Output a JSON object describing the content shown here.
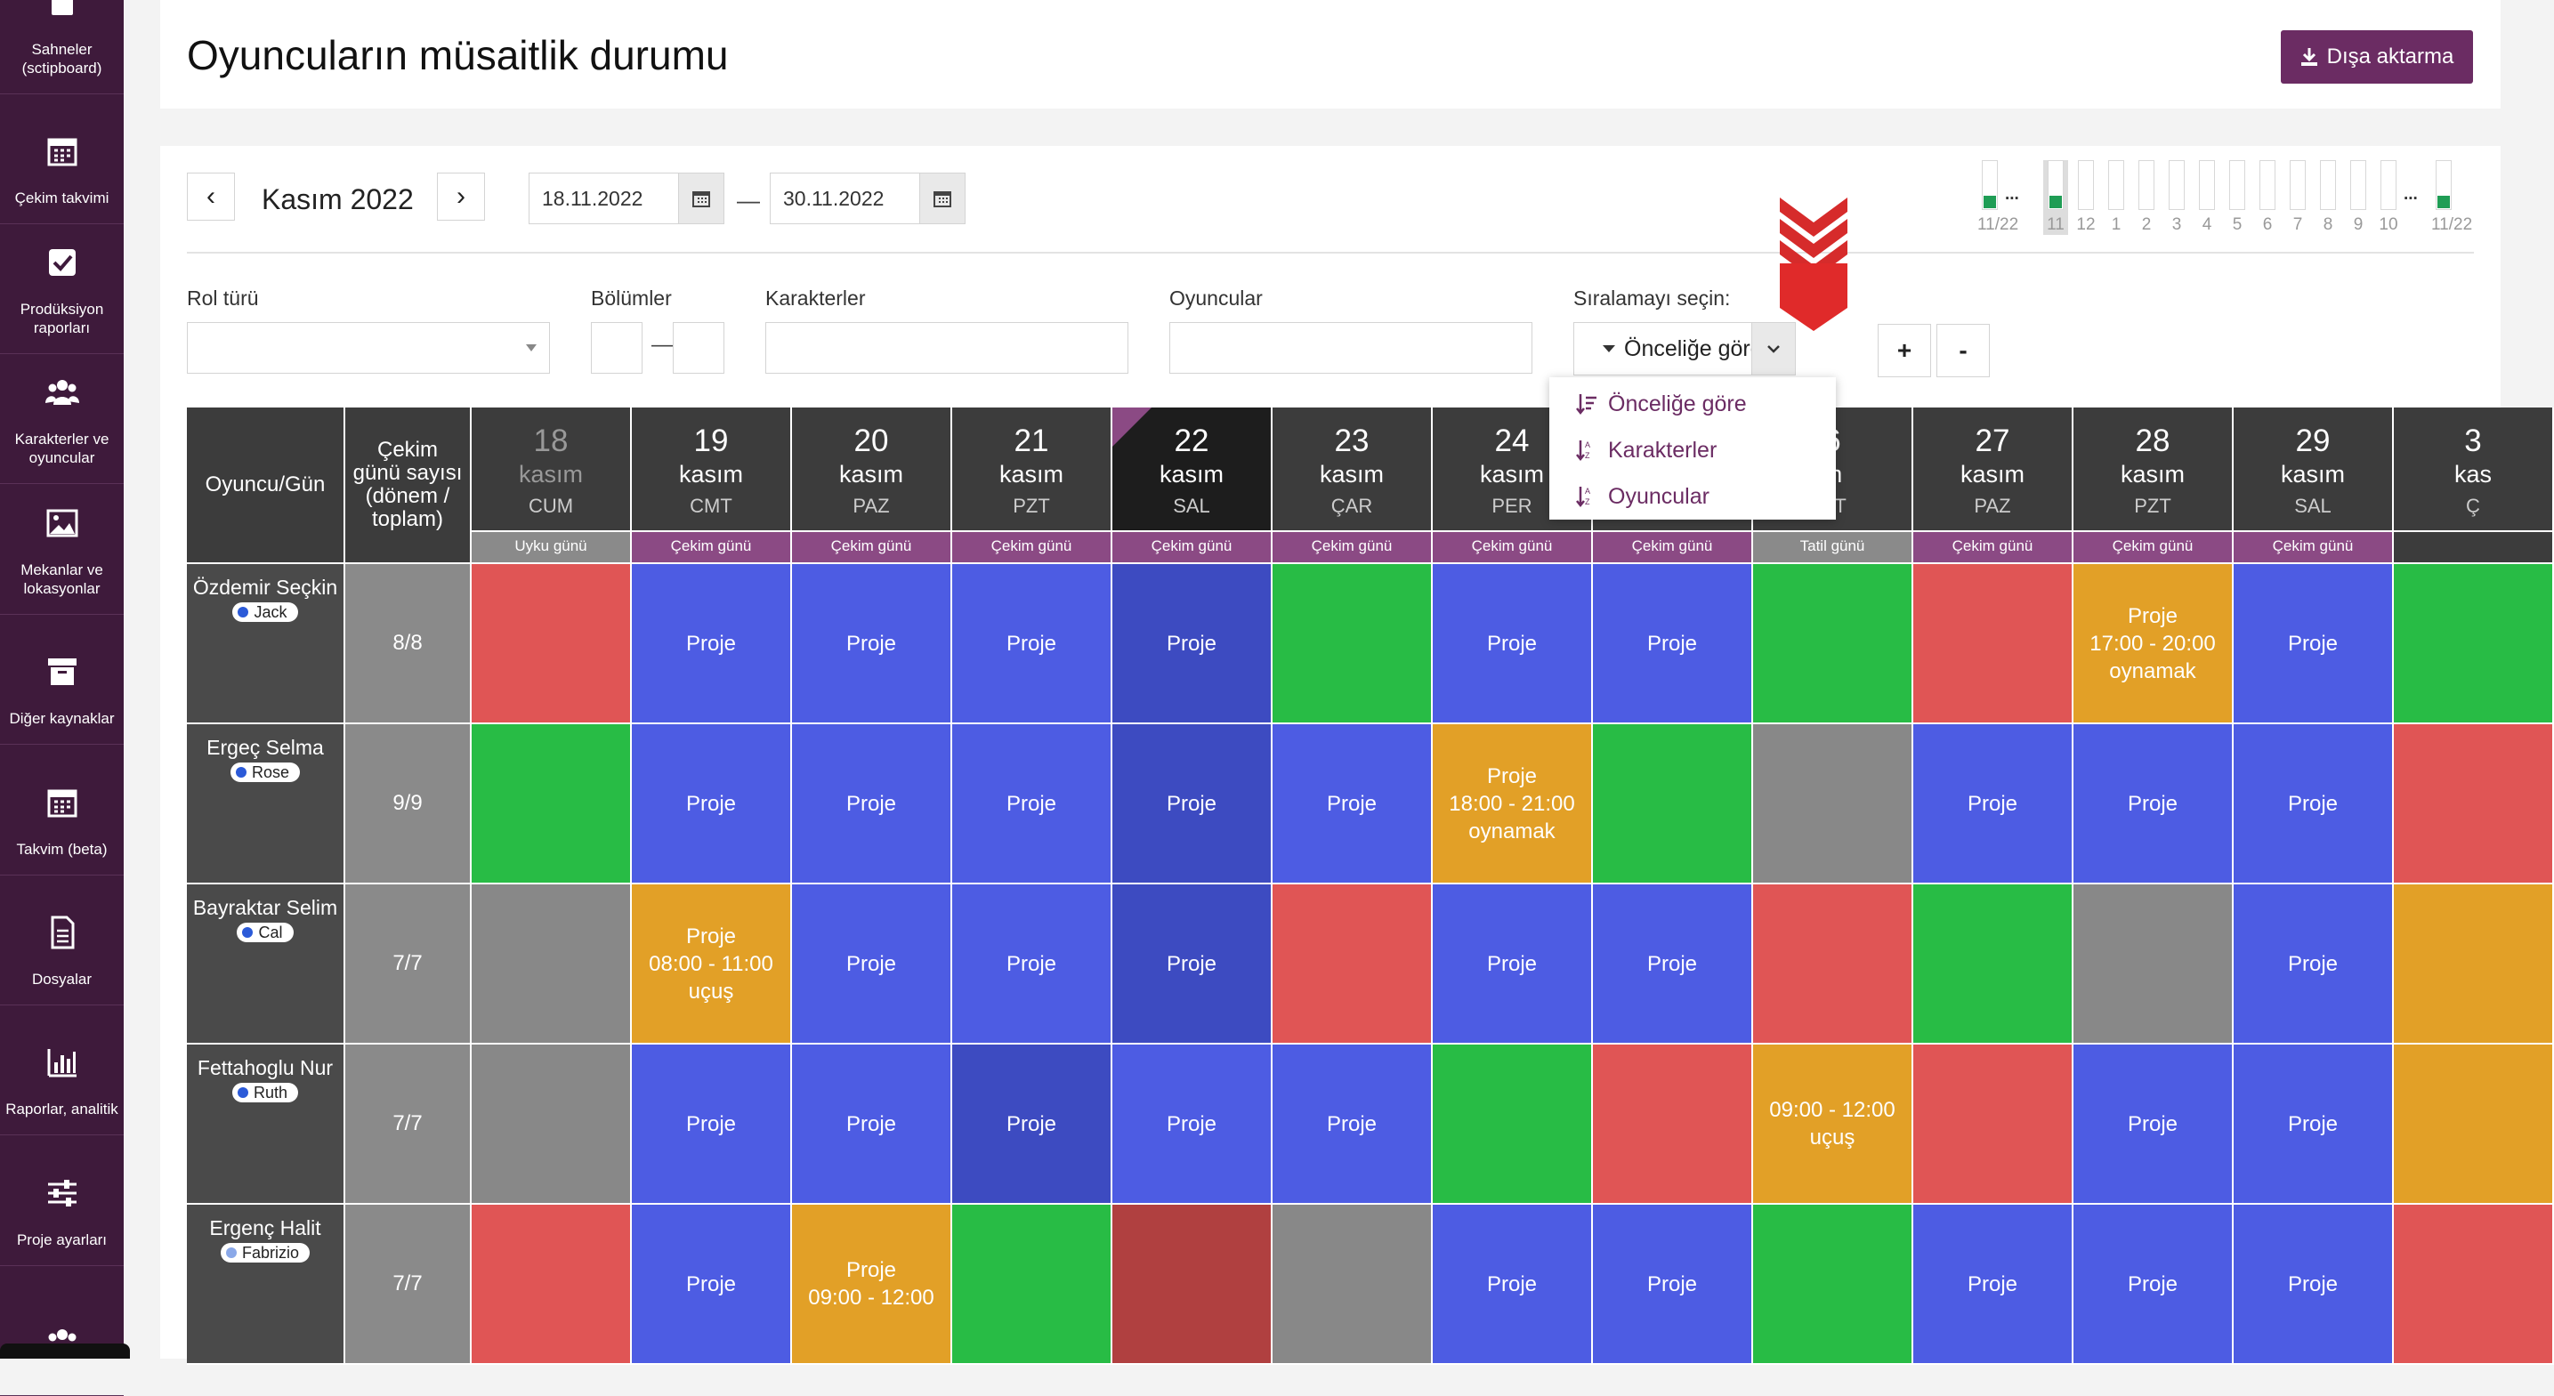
{
  "sidebar": {
    "items": [
      {
        "label": "Sahneler (sctipboard)",
        "icon": "clipboard-icon"
      },
      {
        "label": "Çekim takvimi",
        "icon": "calendar-icon"
      },
      {
        "label": "Prodüksiyon raporları",
        "icon": "checkbox-icon"
      },
      {
        "label": "Karakterler ve oyuncular",
        "icon": "people-icon"
      },
      {
        "label": "Mekanlar ve lokasyonlar",
        "icon": "image-icon"
      },
      {
        "label": "Diğer kaynaklar",
        "icon": "archive-icon"
      },
      {
        "label": "Takvim (beta)",
        "icon": "calendar-icon"
      },
      {
        "label": "Dosyalar",
        "icon": "file-icon"
      },
      {
        "label": "Raporlar, analitik",
        "icon": "bar-chart-icon"
      },
      {
        "label": "Proje ayarları",
        "icon": "sliders-icon"
      },
      {
        "label": "",
        "icon": "people-icon"
      }
    ]
  },
  "header": {
    "title": "Oyuncuların müsaitlik durumu",
    "export_label": "Dışa aktarma"
  },
  "toolbar": {
    "prev": "‹",
    "next": "›",
    "month": "Kasım 2022",
    "date_from": "18.11.2022",
    "date_to": "30.11.2022",
    "dash": "—"
  },
  "mini_timeline": [
    {
      "label": "11/22",
      "filled": true
    },
    {
      "label": "...",
      "filled": false,
      "ellipsis": true
    },
    {
      "label": "11",
      "filled": true,
      "selected": true
    },
    {
      "label": "12",
      "filled": false
    },
    {
      "label": "1",
      "filled": false
    },
    {
      "label": "2",
      "filled": false
    },
    {
      "label": "3",
      "filled": false
    },
    {
      "label": "4",
      "filled": false
    },
    {
      "label": "5",
      "filled": false
    },
    {
      "label": "6",
      "filled": false
    },
    {
      "label": "7",
      "filled": false
    },
    {
      "label": "8",
      "filled": false
    },
    {
      "label": "9",
      "filled": false
    },
    {
      "label": "10",
      "filled": false
    },
    {
      "label": "...",
      "filled": false,
      "ellipsis": true
    },
    {
      "label": "11/22",
      "filled": true
    }
  ],
  "filters": {
    "role_type": "Rol türü",
    "episodes": "Bölümler",
    "episodes_dash": "—",
    "characters": "Karakterler",
    "actors": "Oyuncular",
    "sort_label": "Sıralamayı seçin:",
    "sort_value": "Önceliğe göre",
    "plus": "+",
    "minus": "-"
  },
  "sort_menu": [
    "Önceliğe göre",
    "Karakterler",
    "Oyuncular"
  ],
  "grid": {
    "col_actor": "Oyuncu/Gün",
    "col_count": "Çekim günü sayısı (dönem / toplam)",
    "days": [
      {
        "day": "18",
        "month": "kasım",
        "dow": "CUM",
        "type": "Uyku günü",
        "past": true
      },
      {
        "day": "19",
        "month": "kasım",
        "dow": "CMT",
        "type": "Çekim günü"
      },
      {
        "day": "20",
        "month": "kasım",
        "dow": "PAZ",
        "type": "Çekim günü"
      },
      {
        "day": "21",
        "month": "kasım",
        "dow": "PZT",
        "type": "Çekim günü"
      },
      {
        "day": "22",
        "month": "kasım",
        "dow": "SAL",
        "type": "Çekim günü",
        "today": true
      },
      {
        "day": "23",
        "month": "kasım",
        "dow": "ÇAR",
        "type": "Çekim günü"
      },
      {
        "day": "24",
        "month": "kasım",
        "dow": "PER",
        "type": "Çekim günü"
      },
      {
        "day": "",
        "month": "",
        "dow": "",
        "type": "Çekim günü"
      },
      {
        "day": "6",
        "month": "m",
        "dow": "MT",
        "type": "Tatil günü"
      },
      {
        "day": "27",
        "month": "kasım",
        "dow": "PAZ",
        "type": "Çekim günü"
      },
      {
        "day": "28",
        "month": "kasım",
        "dow": "PZT",
        "type": "Çekim günü"
      },
      {
        "day": "29",
        "month": "kasım",
        "dow": "SAL",
        "type": "Çekim günü"
      },
      {
        "day": "3",
        "month": "kas",
        "dow": "Ç",
        "type": ""
      }
    ],
    "rows": [
      {
        "name": "Özdemir Seçkin",
        "character": "Jack",
        "dot": "#2b5ad8",
        "count": "8/8",
        "cells": [
          [
            "red",
            ""
          ],
          [
            "blue",
            "Proje"
          ],
          [
            "blue",
            "Proje"
          ],
          [
            "blue",
            "Proje"
          ],
          [
            "blue-d",
            "Proje"
          ],
          [
            "green",
            ""
          ],
          [
            "blue",
            "Proje"
          ],
          [
            "blue",
            "Proje"
          ],
          [
            "green",
            ""
          ],
          [
            "red",
            ""
          ],
          [
            "orange",
            "Proje\n17:00 - 20:00\noynamak"
          ],
          [
            "blue",
            "Proje"
          ],
          [
            "green",
            ""
          ]
        ]
      },
      {
        "name": "Ergeç Selma",
        "character": "Rose",
        "dot": "#2b5ad8",
        "count": "9/9",
        "cells": [
          [
            "green",
            ""
          ],
          [
            "blue",
            "Proje"
          ],
          [
            "blue",
            "Proje"
          ],
          [
            "blue",
            "Proje"
          ],
          [
            "blue-d",
            "Proje"
          ],
          [
            "blue",
            "Proje"
          ],
          [
            "orange",
            "Proje\n18:00 - 21:00\noynamak"
          ],
          [
            "green",
            ""
          ],
          [
            "grey",
            ""
          ],
          [
            "blue",
            "Proje"
          ],
          [
            "blue",
            "Proje"
          ],
          [
            "blue",
            "Proje"
          ],
          [
            "red",
            ""
          ]
        ]
      },
      {
        "name": "Bayraktar Selim",
        "character": "Cal",
        "dot": "#2b5ad8",
        "count": "7/7",
        "cells": [
          [
            "grey",
            ""
          ],
          [
            "orange",
            "Proje\n08:00 - 11:00\nuçuş"
          ],
          [
            "blue",
            "Proje"
          ],
          [
            "blue",
            "Proje"
          ],
          [
            "blue-d",
            "Proje"
          ],
          [
            "red",
            ""
          ],
          [
            "blue",
            "Proje"
          ],
          [
            "blue",
            "Proje"
          ],
          [
            "red",
            ""
          ],
          [
            "green",
            ""
          ],
          [
            "grey",
            ""
          ],
          [
            "blue",
            "Proje"
          ],
          [
            "orange",
            ""
          ]
        ]
      },
      {
        "name": "Fettahoglu Nur",
        "character": "Ruth",
        "dot": "#2b5ad8",
        "count": "7/7",
        "cells": [
          [
            "grey",
            ""
          ],
          [
            "blue",
            "Proje"
          ],
          [
            "blue",
            "Proje"
          ],
          [
            "blue-d",
            "Proje"
          ],
          [
            "blue",
            "Proje"
          ],
          [
            "blue",
            "Proje"
          ],
          [
            "green",
            ""
          ],
          [
            "red",
            ""
          ],
          [
            "orange",
            "09:00 - 12:00\nuçuş"
          ],
          [
            "red",
            ""
          ],
          [
            "blue",
            "Proje"
          ],
          [
            "blue",
            "Proje"
          ],
          [
            "orange",
            ""
          ]
        ]
      },
      {
        "name": "Ergenç Halit",
        "character": "Fabrizio",
        "dot": "#8aa8e8",
        "count": "7/7",
        "cells": [
          [
            "red",
            ""
          ],
          [
            "blue",
            "Proje"
          ],
          [
            "orange",
            "Proje\n09:00 - 12:00"
          ],
          [
            "green",
            ""
          ],
          [
            "red-d",
            ""
          ],
          [
            "grey",
            ""
          ],
          [
            "blue",
            "Proje"
          ],
          [
            "blue",
            "Proje"
          ],
          [
            "green",
            ""
          ],
          [
            "blue",
            "Proje"
          ],
          [
            "blue",
            "Proje"
          ],
          [
            "blue",
            "Proje"
          ],
          [
            "red",
            ""
          ]
        ]
      }
    ]
  },
  "colors": {
    "sidebar_bg": "#3e1a3b",
    "accent": "#6b2c63",
    "blue": "#4d5ce3",
    "red": "#e05555",
    "green": "#28bc45",
    "orange": "#e2a027",
    "grey": "#888888"
  }
}
